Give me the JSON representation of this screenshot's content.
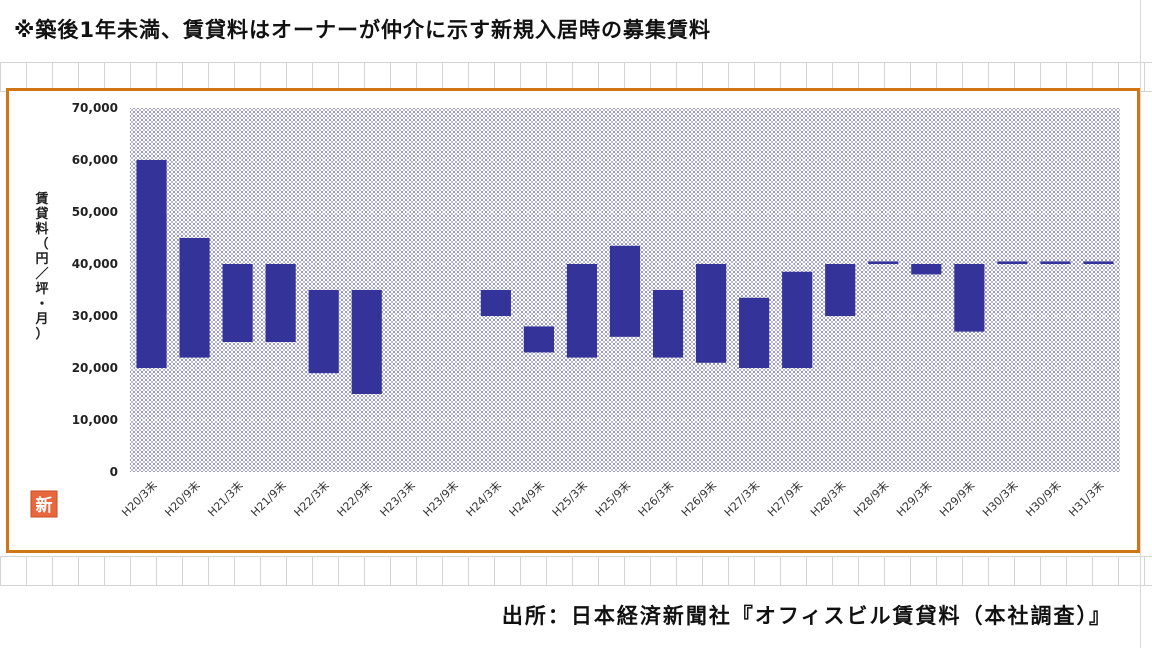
{
  "header": {
    "note": "※築後1年未満、賃貸料はオーナーが仲介に示す新規入居時の募集賃料"
  },
  "footer": {
    "source": "出所：日本経済新聞社『オフィスビル賃貸料（本社調査）』"
  },
  "badge": {
    "label": "新"
  },
  "colors": {
    "bar": "#333399",
    "frame": "#d07514",
    "plot_dots": "#8f8fc6",
    "badge": "#e8673c"
  },
  "chart_data": {
    "type": "bar",
    "subtype": "floating-range",
    "ylabel": "賃貸料（円／坪・月）",
    "xlabel": "",
    "title": "",
    "ylim": [
      0,
      70000
    ],
    "yticks": [
      "0",
      "10,000",
      "20,000",
      "30,000",
      "40,000",
      "50,000",
      "60,000",
      "70,000"
    ],
    "ytick_values": [
      0,
      10000,
      20000,
      30000,
      40000,
      50000,
      60000,
      70000
    ],
    "categories": [
      "H20/3末",
      "H20/9末",
      "H21/3末",
      "H21/9末",
      "H22/3末",
      "H22/9末",
      "H23/3末",
      "H23/9末",
      "H24/3末",
      "H24/9末",
      "H25/3末",
      "H25/9末",
      "H26/3末",
      "H26/9末",
      "H27/3末",
      "H27/9末",
      "H28/3末",
      "H28/9末",
      "H29/3末",
      "H29/9末",
      "H30/3末",
      "H30/9末",
      "H31/3末"
    ],
    "series": [
      {
        "low": [
          20000,
          22000,
          25000,
          25000,
          19000,
          15000,
          null,
          null,
          30000,
          23000,
          22000,
          26000,
          22000,
          21000,
          20000,
          20000,
          30000,
          40000,
          38000,
          27000,
          40000,
          40000,
          40000
        ],
        "high": [
          60000,
          45000,
          40000,
          40000,
          35000,
          35000,
          null,
          null,
          35000,
          28000,
          40000,
          43500,
          35000,
          40000,
          33500,
          38500,
          40000,
          40500,
          40000,
          40000,
          40500,
          40500,
          40500
        ]
      }
    ],
    "grid": false,
    "legend": "none"
  }
}
